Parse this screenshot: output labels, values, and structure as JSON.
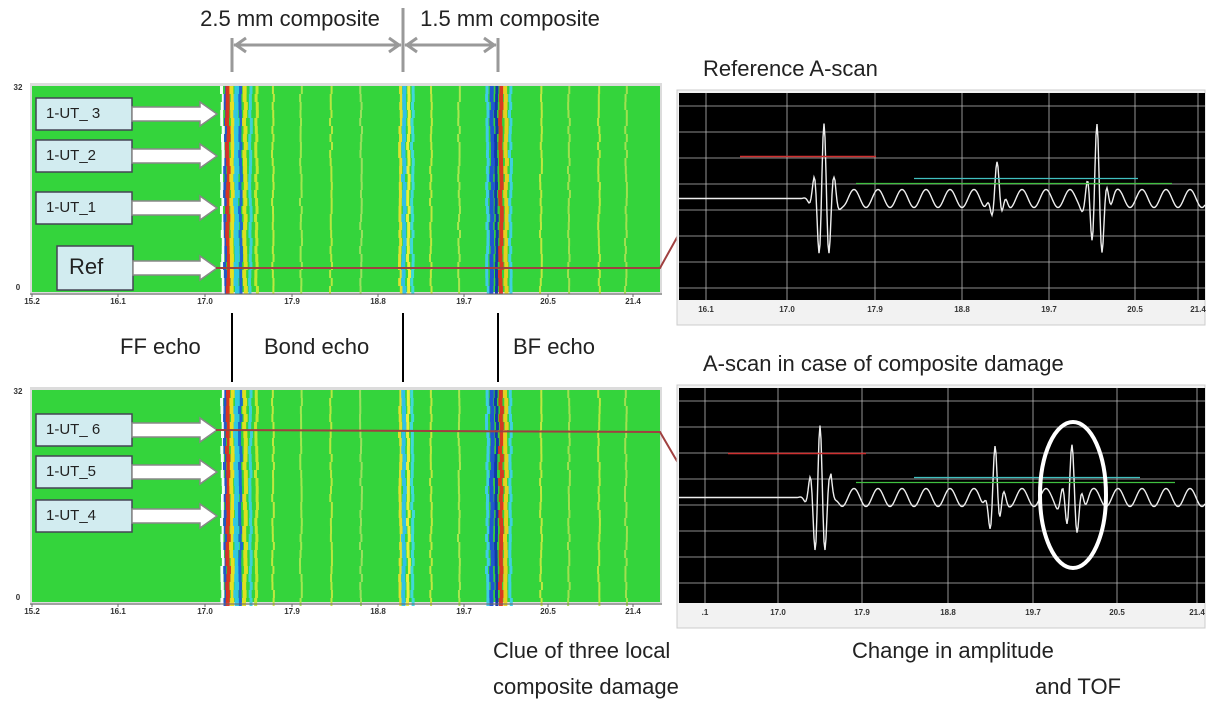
{
  "dimensions": {
    "left": "2.5 mm composite",
    "right": "1.5 mm composite"
  },
  "bscan_top": {
    "y_top": "32",
    "y_bottom": "0",
    "x_ticks": [
      "15.2",
      "16.1",
      "17.0",
      "17.9",
      "18.8",
      "19.7",
      "20.5",
      "21.4"
    ],
    "probes": [
      "1-UT_ 3",
      "1-UT_2",
      "1-UT_1",
      "Ref"
    ]
  },
  "echo_labels": {
    "ff": "FF echo",
    "bond": "Bond echo",
    "bf": "BF echo"
  },
  "bscan_bottom": {
    "y_top": "32",
    "y_bottom": "0",
    "x_ticks": [
      "15.2",
      "16.1",
      "17.0",
      "17.9",
      "18.8",
      "19.7",
      "20.5",
      "21.4"
    ],
    "probes": [
      "1-UT_ 6",
      "1-UT_5",
      "1-UT_4"
    ]
  },
  "ascan_reference": {
    "title": "Reference A-scan",
    "x_ticks": [
      "16.1",
      "17.0",
      "17.9",
      "18.8",
      "19.7",
      "20.5",
      "21.4"
    ]
  },
  "ascan_damage": {
    "title": "A-scan in case of composite damage",
    "x_ticks": [
      ".1",
      "17.0",
      "17.9",
      "18.8",
      "19.7",
      "20.5",
      "21.4"
    ]
  },
  "captions": {
    "bscan": [
      "Clue of three local",
      "composite damage"
    ],
    "ascan": [
      "Change in amplitude",
      "and TOF"
    ]
  }
}
